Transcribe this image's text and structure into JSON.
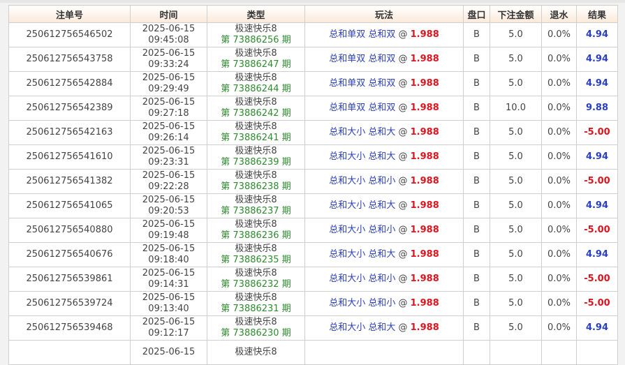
{
  "headers": [
    "注单号",
    "时间",
    "类型",
    "玩法",
    "盘口",
    "下注金额",
    "退水",
    "结果"
  ],
  "colors": {
    "win": "#2a3fc0",
    "lose": "#e0141e",
    "issue": "#2e8b2e"
  },
  "rows": [
    {
      "id": "250612756546502",
      "date": "2025-06-15",
      "time": "09:45:08",
      "game": "极速快乐8",
      "issue": "第 73886256 期",
      "play": "总和单双 总和双",
      "at": "@",
      "odds": "1.988",
      "pan": "B",
      "amount": "5.0",
      "rebate": "0.0%",
      "result": "4.94",
      "win": true
    },
    {
      "id": "250612756543758",
      "date": "2025-06-15",
      "time": "09:33:24",
      "game": "极速快乐8",
      "issue": "第 73886247 期",
      "play": "总和单双 总和双",
      "at": "@",
      "odds": "1.988",
      "pan": "B",
      "amount": "5.0",
      "rebate": "0.0%",
      "result": "4.94",
      "win": true
    },
    {
      "id": "250612756542884",
      "date": "2025-06-15",
      "time": "09:29:49",
      "game": "极速快乐8",
      "issue": "第 73886244 期",
      "play": "总和单双 总和双",
      "at": "@",
      "odds": "1.988",
      "pan": "B",
      "amount": "5.0",
      "rebate": "0.0%",
      "result": "4.94",
      "win": true
    },
    {
      "id": "250612756542389",
      "date": "2025-06-15",
      "time": "09:27:18",
      "game": "极速快乐8",
      "issue": "第 73886242 期",
      "play": "总和单双 总和双",
      "at": "@",
      "odds": "1.988",
      "pan": "B",
      "amount": "10.0",
      "rebate": "0.0%",
      "result": "9.88",
      "win": true
    },
    {
      "id": "250612756542163",
      "date": "2025-06-15",
      "time": "09:26:14",
      "game": "极速快乐8",
      "issue": "第 73886241 期",
      "play": "总和大小 总和大",
      "at": "@",
      "odds": "1.988",
      "pan": "B",
      "amount": "5.0",
      "rebate": "0.0%",
      "result": "-5.00",
      "win": false
    },
    {
      "id": "250612756541610",
      "date": "2025-06-15",
      "time": "09:23:31",
      "game": "极速快乐8",
      "issue": "第 73886239 期",
      "play": "总和大小 总和大",
      "at": "@",
      "odds": "1.988",
      "pan": "B",
      "amount": "5.0",
      "rebate": "0.0%",
      "result": "4.94",
      "win": true
    },
    {
      "id": "250612756541382",
      "date": "2025-06-15",
      "time": "09:22:28",
      "game": "极速快乐8",
      "issue": "第 73886238 期",
      "play": "总和大小 总和小",
      "at": "@",
      "odds": "1.988",
      "pan": "B",
      "amount": "5.0",
      "rebate": "0.0%",
      "result": "-5.00",
      "win": false
    },
    {
      "id": "250612756541065",
      "date": "2025-06-15",
      "time": "09:20:53",
      "game": "极速快乐8",
      "issue": "第 73886237 期",
      "play": "总和大小 总和大",
      "at": "@",
      "odds": "1.988",
      "pan": "B",
      "amount": "5.0",
      "rebate": "0.0%",
      "result": "4.94",
      "win": true
    },
    {
      "id": "250612756540880",
      "date": "2025-06-15",
      "time": "09:19:48",
      "game": "极速快乐8",
      "issue": "第 73886236 期",
      "play": "总和大小 总和小",
      "at": "@",
      "odds": "1.988",
      "pan": "B",
      "amount": "5.0",
      "rebate": "0.0%",
      "result": "-5.00",
      "win": false
    },
    {
      "id": "250612756540676",
      "date": "2025-06-15",
      "time": "09:18:40",
      "game": "极速快乐8",
      "issue": "第 73886235 期",
      "play": "总和大小 总和大",
      "at": "@",
      "odds": "1.988",
      "pan": "B",
      "amount": "5.0",
      "rebate": "0.0%",
      "result": "4.94",
      "win": true
    },
    {
      "id": "250612756539861",
      "date": "2025-06-15",
      "time": "09:14:31",
      "game": "极速快乐8",
      "issue": "第 73886232 期",
      "play": "总和大小 总和小",
      "at": "@",
      "odds": "1.988",
      "pan": "B",
      "amount": "5.0",
      "rebate": "0.0%",
      "result": "-5.00",
      "win": false
    },
    {
      "id": "250612756539724",
      "date": "2025-06-15",
      "time": "09:13:40",
      "game": "极速快乐8",
      "issue": "第 73886231 期",
      "play": "总和大小 总和小",
      "at": "@",
      "odds": "1.988",
      "pan": "B",
      "amount": "5.0",
      "rebate": "0.0%",
      "result": "-5.00",
      "win": false
    },
    {
      "id": "250612756539468",
      "date": "2025-06-15",
      "time": "09:12:17",
      "game": "极速快乐8",
      "issue": "第 73886230 期",
      "play": "总和大小 总和大",
      "at": "@",
      "odds": "1.988",
      "pan": "B",
      "amount": "5.0",
      "rebate": "0.0%",
      "result": "4.94",
      "win": true
    },
    {
      "id": "",
      "date": "2025-06-15",
      "time": "",
      "game": "极速快乐8",
      "issue": "",
      "play": "",
      "at": "",
      "odds": "",
      "pan": "",
      "amount": "",
      "rebate": "",
      "result": "",
      "win": true
    }
  ]
}
